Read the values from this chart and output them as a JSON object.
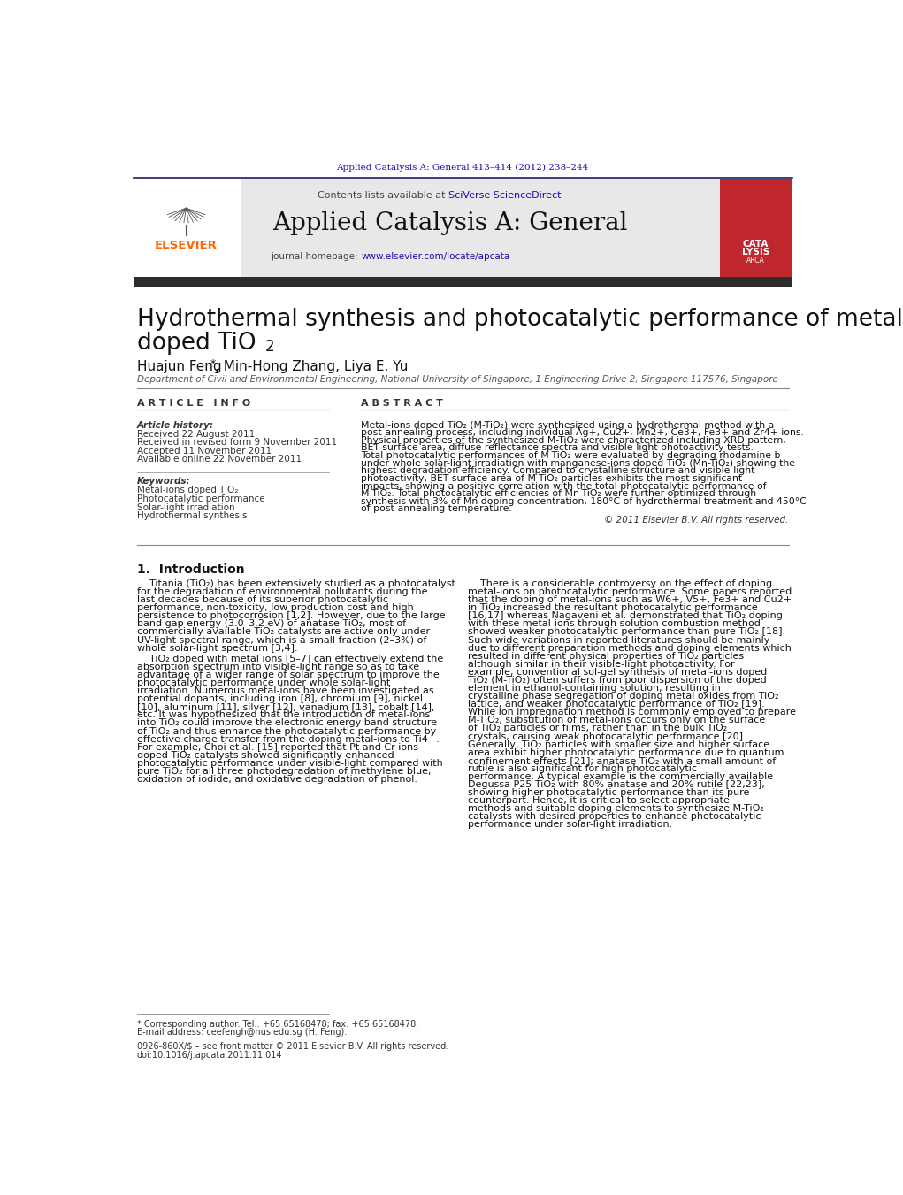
{
  "page_bg": "#ffffff",
  "header_citation": "Applied Catalysis A: General 413–414 (2012) 238–244",
  "header_citation_color": "#1a0dab",
  "journal_header_bg": "#e8e8e8",
  "journal_name": "Applied Catalysis A: General",
  "sciverse_color": "#1a0dab",
  "homepage_url_color": "#1a0dab",
  "dark_bar_color": "#2c2c2c",
  "elsevier_orange": "#FF6600",
  "red_cover_color": "#c0272d",
  "article_info_header": "A R T I C L E   I N F O",
  "abstract_header": "A B S T R A C T",
  "article_history_label": "Article history:",
  "received": "Received 22 August 2011",
  "received_revised": "Received in revised form 9 November 2011",
  "accepted": "Accepted 11 November 2011",
  "available_online": "Available online 22 November 2011",
  "keywords_label": "Keywords:",
  "keywords": [
    "Metal-ions doped TiO₂",
    "Photocatalytic performance",
    "Solar-light irradiation",
    "Hydrothermal synthesis"
  ],
  "abstract_text": "Metal-ions doped TiO₂ (M-TiO₂) were synthesized using a hydrothermal method with a post-annealing process, including individual Ag+, Cu2+, Mn2+, Ce3+, Fe3+ and Zr4+ ions. Physical properties of the synthesized M-TiO₂ were characterized including XRD pattern, BET surface area, diffuse reflectance spectra and visible-light photoactivity tests. Total photocatalytic performances of M-TiO₂ were evaluated by degrading rhodamine b under whole solar-light irradiation with manganese-ions doped TiO₂ (Mn-TiO₂) showing the highest degradation efficiency. Compared to crystalline structure and visible-light photoactivity, BET surface area of M-TiO₂ particles exhibits the most significant impacts, showing a positive correlation with the total photocatalytic performance of M-TiO₂. Total photocatalytic efficiencies of Mn-TiO₂ were further optimized through synthesis with 3% of Mn doping concentration, 180°C of hydrothermal treatment and 450°C of post-annealing temperature.",
  "copyright": "© 2011 Elsevier B.V. All rights reserved.",
  "section1_title": "1.  Introduction",
  "intro_col1": "Titania (TiO₂) has been extensively studied as a photocatalyst for the degradation of environmental pollutants during the last decades because of its superior photocatalytic performance, non-toxicity, low production cost and high persistence to photocorrosion [1,2]. However, due to the large band gap energy (3.0–3.2 eV) of anatase TiO₂, most of commercially available TiO₂ catalysts are active only under UV-light spectral range, which is a small fraction (2–3%) of whole solar-light spectrum [3,4].\n\nTiO₂ doped with metal ions [5–7] can effectively extend the absorption spectrum into visible-light range so as to take advantage of a wider range of solar spectrum to improve the photocatalytic performance under whole solar-light irradiation. Numerous metal-ions have been investigated as potential dopants, including iron [8], chromium [9], nickel [10], aluminum [11], silver [12], vanadium [13], cobalt [14], etc. It was hypothesized that the introduction of metal-ions into TiO₂ could improve the electronic energy band structure of TiO₂ and thus enhance the photocatalytic performance by effective charge transfer from the doping metal-ions to Ti4+. For example, Choi et al. [15] reported that Pt and Cr ions doped TiO₂ catalysts showed significantly enhanced photocatalytic performance under visible-light compared with pure TiO₂ for all three photodegradation of methylene blue, oxidation of iodide, and oxidative degradation of phenol.",
  "intro_col2": "There is a considerable controversy on the effect of doping metal-ions on photocatalytic performance. Some papers reported that the doping of metal-ions such as W6+, V5+, Fe3+ and Cu2+ in TiO₂ increased the resultant photocatalytic performance [16,17] whereas Nagaveni et al. demonstrated that TiO₂ doping with these metal-ions through solution combustion method showed weaker photocatalytic performance than pure TiO₂ [18]. Such wide variations in reported literatures should be mainly due to different preparation methods and doping elements which resulted in different physical properties of TiO₂ particles although similar in their visible-light photoactivity. For example, conventional sol-gel synthesis of metal-ions doped TiO₂ (M-TiO₂) often suffers from poor dispersion of the doped element in ethanol-containing solution, resulting in crystalline phase segregation of doping metal oxides from TiO₂ lattice, and weaker photocatalytic performance of TiO₂ [19]. While ion impregnation method is commonly employed to prepare M-TiO₂, substitution of metal-ions occurs only on the surface of TiO₂ particles or films, rather than in the bulk TiO₂ crystals, causing weak photocatalytic performance [20]. Generally, TiO₂ particles with smaller size and higher surface area exhibit higher photocatalytic performance due to quantum confinement effects [21]; anatase TiO₂ with a small amount of rutile is also significant for high photocatalytic performance. A typical example is the commercially available Degussa P25 TiO₂ with 80% anatase and 20% rutile [22,23], showing higher photocatalytic performance than its pure counterpart. Hence, it is critical to select appropriate methods and suitable doping elements to synthesize M-TiO₂ catalysts with desired properties to enhance photocatalytic performance under solar-light irradiation.",
  "footnote_star": "* Corresponding author. Tel.: +65 65168478; fax: +65 65168478.",
  "footnote_email": "E-mail address: ceefengh@nus.edu.sg (H. Feng).",
  "issn_line": "0926-860X/$ – see front matter © 2011 Elsevier B.V. All rights reserved.",
  "doi_line": "doi:10.1016/j.apcata.2011.11.014",
  "affiliation": "Department of Civil and Environmental Engineering, National University of Singapore, 1 Engineering Drive 2, Singapore 117576, Singapore"
}
